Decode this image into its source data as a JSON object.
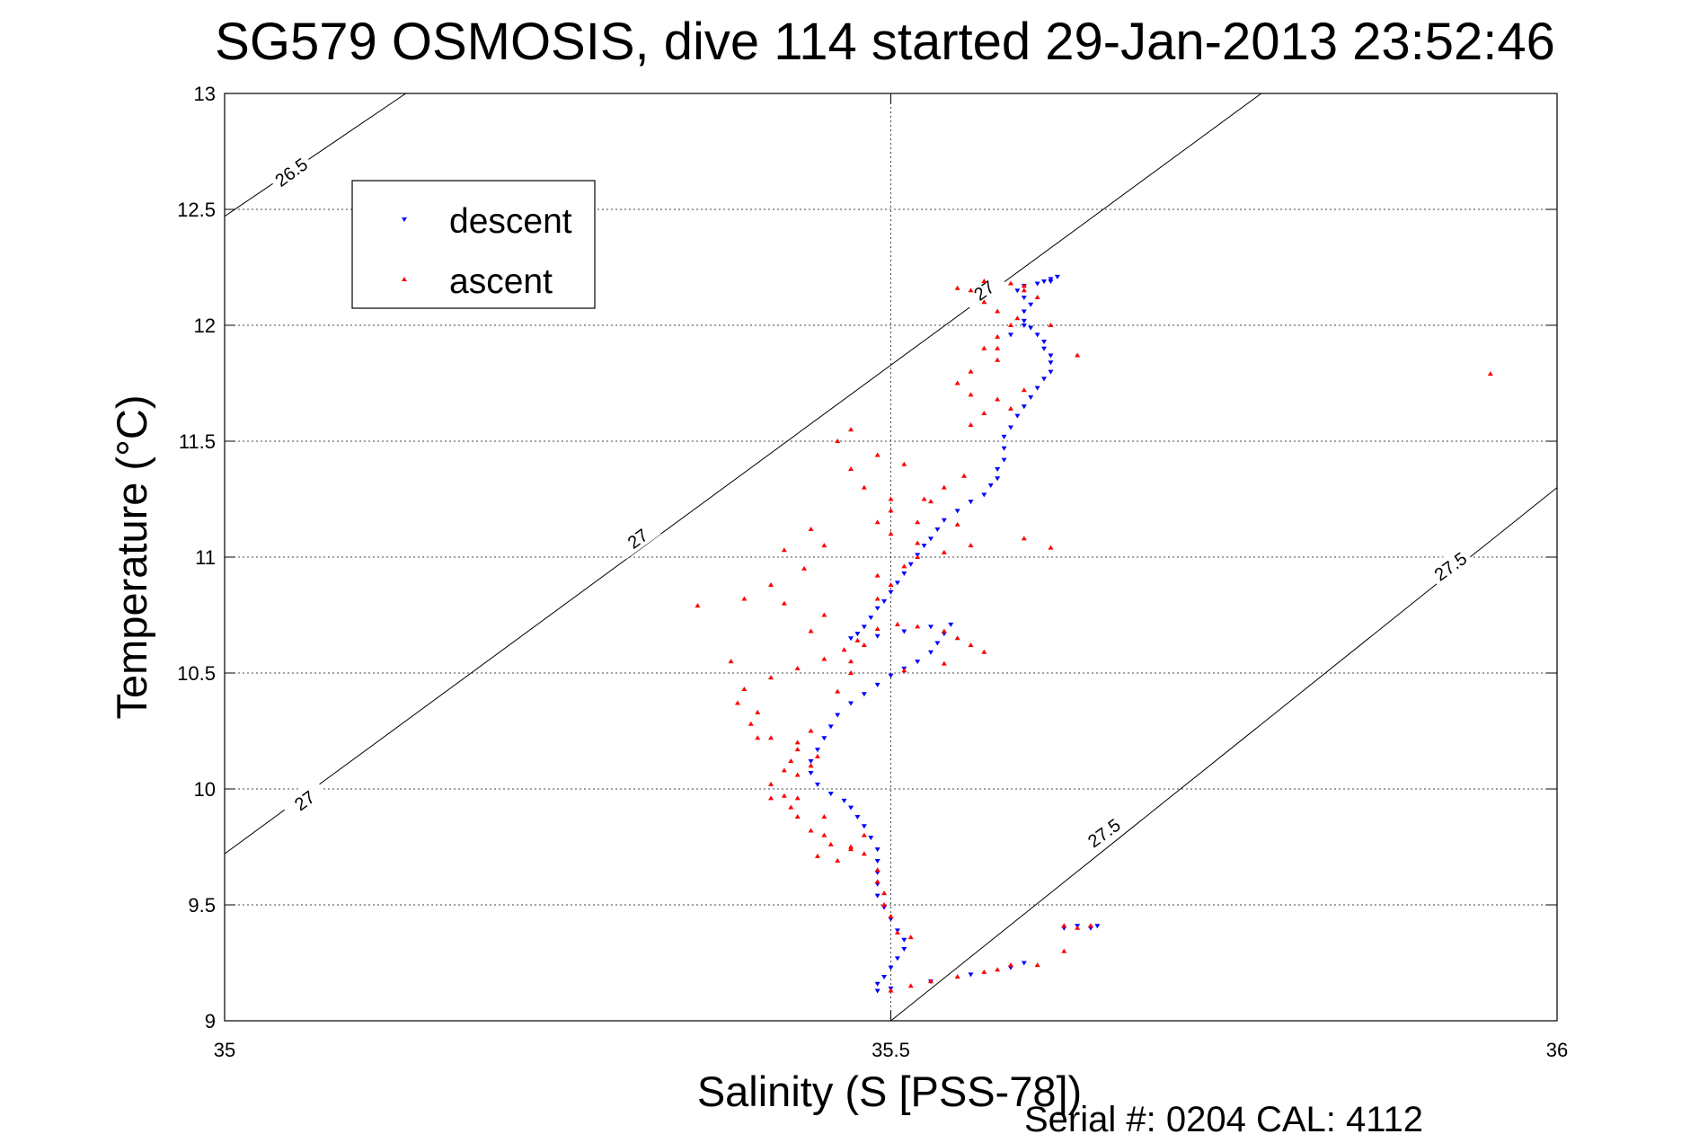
{
  "chart_data": {
    "type": "scatter",
    "title": "SG579 OSMOSIS, dive 114 started 29-Jan-2013 23:52:46",
    "xlabel": "Salinity (S [PSS-78])",
    "ylabel": "Temperature (°C)",
    "xlim": [
      35,
      36
    ],
    "ylim": [
      9,
      13
    ],
    "x_ticks": [
      "35",
      "35.5",
      "36"
    ],
    "y_ticks": [
      "9",
      "9.5",
      "10",
      "10.5",
      "11",
      "11.5",
      "12",
      "12.5",
      "13"
    ],
    "x_tick_values": [
      35,
      35.5,
      36
    ],
    "y_tick_values": [
      9,
      9.5,
      10,
      10.5,
      11,
      11.5,
      12,
      12.5,
      13
    ],
    "grid": true,
    "legend_position": "top-left",
    "footer": "Serial #: 0204  CAL: 4112",
    "series": [
      {
        "name": "descent",
        "color": "#0000ff",
        "marker": "triangle-down",
        "points": [
          [
            35.62,
            12.19
          ],
          [
            35.615,
            12.19
          ],
          [
            35.61,
            12.18
          ],
          [
            35.6,
            12.17
          ],
          [
            35.595,
            12.15
          ],
          [
            35.6,
            12.12
          ],
          [
            35.605,
            12.09
          ],
          [
            35.6,
            12.06
          ],
          [
            35.6,
            12.02
          ],
          [
            35.605,
            11.99
          ],
          [
            35.61,
            11.96
          ],
          [
            35.615,
            11.93
          ],
          [
            35.615,
            11.9
          ],
          [
            35.62,
            11.87
          ],
          [
            35.62,
            11.84
          ],
          [
            35.62,
            11.8
          ],
          [
            35.615,
            11.77
          ],
          [
            35.61,
            11.73
          ],
          [
            35.605,
            11.69
          ],
          [
            35.6,
            11.65
          ],
          [
            35.595,
            11.61
          ],
          [
            35.59,
            11.56
          ],
          [
            35.585,
            11.52
          ],
          [
            35.585,
            11.47
          ],
          [
            35.585,
            11.42
          ],
          [
            35.58,
            11.38
          ],
          [
            35.58,
            11.34
          ],
          [
            35.575,
            11.31
          ],
          [
            35.57,
            11.27
          ],
          [
            35.56,
            11.24
          ],
          [
            35.55,
            11.2
          ],
          [
            35.54,
            11.16
          ],
          [
            35.535,
            11.12
          ],
          [
            35.53,
            11.08
          ],
          [
            35.525,
            11.05
          ],
          [
            35.52,
            11.01
          ],
          [
            35.515,
            10.97
          ],
          [
            35.51,
            10.93
          ],
          [
            35.505,
            10.89
          ],
          [
            35.5,
            10.85
          ],
          [
            35.495,
            10.81
          ],
          [
            35.49,
            10.78
          ],
          [
            35.485,
            10.74
          ],
          [
            35.48,
            10.7
          ],
          [
            35.475,
            10.67
          ],
          [
            35.47,
            10.65
          ],
          [
            35.49,
            10.66
          ],
          [
            35.51,
            10.68
          ],
          [
            35.53,
            10.7
          ],
          [
            35.545,
            10.71
          ],
          [
            35.54,
            10.67
          ],
          [
            35.535,
            10.63
          ],
          [
            35.53,
            10.59
          ],
          [
            35.52,
            10.55
          ],
          [
            35.51,
            10.52
          ],
          [
            35.5,
            10.49
          ],
          [
            35.49,
            10.45
          ],
          [
            35.48,
            10.41
          ],
          [
            35.47,
            10.37
          ],
          [
            35.46,
            10.32
          ],
          [
            35.455,
            10.27
          ],
          [
            35.45,
            10.22
          ],
          [
            35.445,
            10.17
          ],
          [
            35.44,
            10.12
          ],
          [
            35.44,
            10.07
          ],
          [
            35.445,
            10.02
          ],
          [
            35.455,
            9.98
          ],
          [
            35.465,
            9.95
          ],
          [
            35.47,
            9.92
          ],
          [
            35.475,
            9.88
          ],
          [
            35.48,
            9.84
          ],
          [
            35.485,
            9.79
          ],
          [
            35.49,
            9.74
          ],
          [
            35.49,
            9.69
          ],
          [
            35.49,
            9.64
          ],
          [
            35.49,
            9.59
          ],
          [
            35.49,
            9.54
          ],
          [
            35.495,
            9.49
          ],
          [
            35.5,
            9.44
          ],
          [
            35.505,
            9.39
          ],
          [
            35.51,
            9.35
          ],
          [
            35.51,
            9.31
          ],
          [
            35.505,
            9.27
          ],
          [
            35.5,
            9.23
          ],
          [
            35.495,
            9.19
          ],
          [
            35.49,
            9.16
          ],
          [
            35.49,
            9.13
          ],
          [
            35.5,
            9.14
          ],
          [
            35.53,
            9.17
          ],
          [
            35.56,
            9.2
          ],
          [
            35.59,
            9.23
          ],
          [
            35.6,
            9.25
          ],
          [
            35.63,
            9.4
          ],
          [
            35.64,
            9.41
          ],
          [
            35.65,
            9.4
          ],
          [
            35.655,
            9.41
          ],
          [
            35.62,
            12.2
          ],
          [
            35.625,
            12.21
          ],
          [
            35.6,
            12.0
          ],
          [
            35.59,
            11.96
          ]
        ]
      },
      {
        "name": "ascent",
        "color": "#ff0000",
        "marker": "triangle-up",
        "points": [
          [
            35.5,
            9.13
          ],
          [
            35.515,
            9.15
          ],
          [
            35.53,
            9.17
          ],
          [
            35.55,
            9.19
          ],
          [
            35.57,
            9.21
          ],
          [
            35.58,
            9.22
          ],
          [
            35.59,
            9.24
          ],
          [
            35.61,
            9.24
          ],
          [
            35.63,
            9.3
          ],
          [
            35.65,
            9.41
          ],
          [
            35.64,
            9.4
          ],
          [
            35.63,
            9.41
          ],
          [
            35.515,
            9.36
          ],
          [
            35.505,
            9.38
          ],
          [
            35.5,
            9.45
          ],
          [
            35.495,
            9.5
          ],
          [
            35.495,
            9.55
          ],
          [
            35.49,
            9.6
          ],
          [
            35.49,
            9.65
          ],
          [
            35.48,
            9.72
          ],
          [
            35.47,
            9.74
          ],
          [
            35.455,
            9.76
          ],
          [
            35.45,
            9.8
          ],
          [
            35.44,
            9.82
          ],
          [
            35.43,
            9.88
          ],
          [
            35.425,
            9.92
          ],
          [
            35.43,
            9.96
          ],
          [
            35.42,
            9.97
          ],
          [
            35.41,
            10.02
          ],
          [
            35.43,
            10.06
          ],
          [
            35.44,
            10.1
          ],
          [
            35.445,
            10.14
          ],
          [
            35.43,
            10.17
          ],
          [
            35.41,
            10.22
          ],
          [
            35.395,
            10.28
          ],
          [
            35.4,
            10.33
          ],
          [
            35.385,
            10.37
          ],
          [
            35.39,
            10.43
          ],
          [
            35.41,
            10.48
          ],
          [
            35.43,
            10.52
          ],
          [
            35.45,
            10.56
          ],
          [
            35.465,
            10.6
          ],
          [
            35.475,
            10.64
          ],
          [
            35.49,
            10.69
          ],
          [
            35.505,
            10.71
          ],
          [
            35.52,
            10.7
          ],
          [
            35.54,
            10.68
          ],
          [
            35.55,
            10.65
          ],
          [
            35.56,
            10.62
          ],
          [
            35.57,
            10.59
          ],
          [
            35.54,
            10.54
          ],
          [
            35.51,
            10.51
          ],
          [
            35.47,
            10.55
          ],
          [
            35.48,
            10.62
          ],
          [
            35.44,
            10.68
          ],
          [
            35.45,
            10.75
          ],
          [
            35.49,
            10.82
          ],
          [
            35.5,
            10.88
          ],
          [
            35.49,
            10.92
          ],
          [
            35.51,
            10.96
          ],
          [
            35.52,
            11.0
          ],
          [
            35.54,
            11.02
          ],
          [
            35.52,
            11.06
          ],
          [
            35.5,
            11.1
          ],
          [
            35.49,
            11.15
          ],
          [
            35.5,
            11.2
          ],
          [
            35.5,
            11.25
          ],
          [
            35.48,
            11.3
          ],
          [
            35.47,
            11.38
          ],
          [
            35.49,
            11.44
          ],
          [
            35.46,
            11.5
          ],
          [
            35.47,
            11.55
          ],
          [
            35.56,
            11.57
          ],
          [
            35.57,
            11.62
          ],
          [
            35.58,
            11.68
          ],
          [
            35.56,
            11.7
          ],
          [
            35.55,
            11.75
          ],
          [
            35.56,
            11.8
          ],
          [
            35.58,
            11.85
          ],
          [
            35.57,
            11.9
          ],
          [
            35.58,
            11.95
          ],
          [
            35.59,
            12.0
          ],
          [
            35.595,
            12.03
          ],
          [
            35.58,
            12.06
          ],
          [
            35.57,
            12.1
          ],
          [
            35.56,
            12.15
          ],
          [
            35.55,
            12.16
          ],
          [
            35.59,
            12.18
          ],
          [
            35.6,
            12.17
          ],
          [
            35.61,
            12.12
          ],
          [
            35.355,
            10.79
          ],
          [
            35.39,
            10.82
          ],
          [
            35.42,
            10.8
          ],
          [
            35.41,
            10.88
          ],
          [
            35.435,
            10.95
          ],
          [
            35.42,
            11.03
          ],
          [
            35.45,
            11.05
          ],
          [
            35.44,
            11.12
          ],
          [
            35.38,
            10.55
          ],
          [
            35.4,
            10.22
          ],
          [
            35.42,
            10.08
          ],
          [
            35.44,
            10.25
          ],
          [
            35.46,
            10.42
          ],
          [
            35.47,
            10.5
          ],
          [
            35.52,
            11.15
          ],
          [
            35.53,
            11.24
          ],
          [
            35.55,
            11.14
          ],
          [
            35.56,
            11.05
          ],
          [
            35.6,
            11.08
          ],
          [
            35.62,
            11.04
          ],
          [
            35.64,
            11.87
          ],
          [
            35.6,
            11.72
          ],
          [
            35.59,
            11.64
          ],
          [
            35.95,
            11.79
          ],
          [
            35.62,
            12.0
          ],
          [
            35.58,
            11.9
          ],
          [
            35.57,
            12.19
          ],
          [
            35.6,
            12.15
          ],
          [
            35.555,
            11.35
          ],
          [
            35.54,
            11.3
          ],
          [
            35.51,
            11.4
          ],
          [
            35.525,
            11.25
          ],
          [
            35.45,
            9.88
          ],
          [
            35.445,
            9.71
          ],
          [
            35.46,
            9.69
          ],
          [
            35.47,
            9.75
          ],
          [
            35.48,
            9.8
          ],
          [
            35.41,
            9.96
          ],
          [
            35.425,
            10.12
          ],
          [
            35.43,
            10.2
          ]
        ]
      }
    ],
    "isopycnals": [
      {
        "label": "26.5",
        "points": [
          [
            35.0,
            12.47
          ],
          [
            35.136,
            13.0
          ]
        ]
      },
      {
        "label": "27",
        "points": [
          [
            35.0,
            9.72
          ],
          [
            35.778,
            13.0
          ]
        ]
      },
      {
        "label": "27.5",
        "points": [
          [
            35.5,
            9.0
          ],
          [
            36.0,
            11.3
          ]
        ]
      }
    ],
    "contour_labels": [
      {
        "text": "26.5",
        "x": 35.05,
        "y": 12.66
      },
      {
        "text": "27",
        "x": 35.06,
        "y": 9.95
      },
      {
        "text": "27",
        "x": 35.31,
        "y": 11.08
      },
      {
        "text": "27",
        "x": 35.57,
        "y": 12.15
      },
      {
        "text": "27.5",
        "x": 35.66,
        "y": 9.81
      },
      {
        "text": "27.5",
        "x": 35.92,
        "y": 10.96
      }
    ]
  }
}
